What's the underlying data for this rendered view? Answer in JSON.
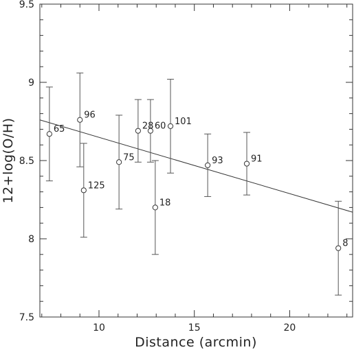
{
  "chart_data": {
    "type": "scatter",
    "title": "",
    "xlabel": "Distance (arcmin)",
    "ylabel": "12+log(O/H)",
    "xlim": [
      6.9,
      23.3
    ],
    "ylim": [
      7.5,
      9.5
    ],
    "xticks": [
      10,
      15,
      20
    ],
    "yticks": [
      7.5,
      8,
      8.5,
      9,
      9.5
    ],
    "grid": false,
    "points": [
      {
        "label": "65",
        "x": 7.4,
        "y": 8.67,
        "err": 0.3
      },
      {
        "label": "96",
        "x": 9.0,
        "y": 8.76,
        "err": 0.3
      },
      {
        "label": "125",
        "x": 9.2,
        "y": 8.31,
        "err": 0.3
      },
      {
        "label": "75",
        "x": 11.05,
        "y": 8.49,
        "err": 0.3
      },
      {
        "label": "28",
        "x": 12.05,
        "y": 8.69,
        "err": 0.2
      },
      {
        "label": "60",
        "x": 12.7,
        "y": 8.69,
        "err": 0.2
      },
      {
        "label": "18",
        "x": 12.95,
        "y": 8.2,
        "err": 0.3
      },
      {
        "label": "101",
        "x": 13.75,
        "y": 8.72,
        "err": 0.3
      },
      {
        "label": "93",
        "x": 15.7,
        "y": 8.47,
        "err": 0.2
      },
      {
        "label": "91",
        "x": 17.75,
        "y": 8.48,
        "err": 0.2
      },
      {
        "label": "8",
        "x": 22.55,
        "y": 7.94,
        "err": 0.3
      }
    ],
    "fit_line": {
      "x": [
        6.9,
        23.3
      ],
      "y": [
        8.76,
        8.17
      ]
    }
  }
}
